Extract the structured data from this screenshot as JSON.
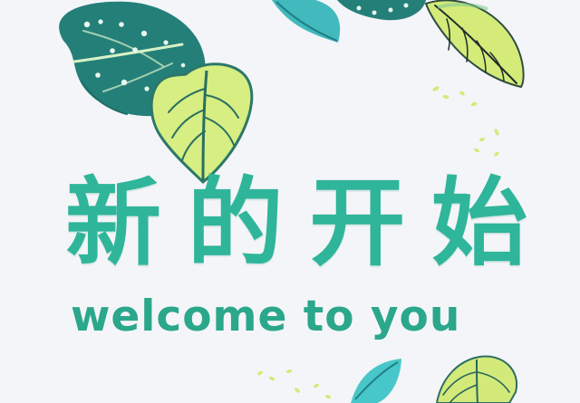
{
  "title": {
    "chars": [
      "新",
      "的",
      "开",
      "始"
    ]
  },
  "subtitle": "welcome to you",
  "colors": {
    "background": "#f4f5f8",
    "title": "#2fb59a",
    "subtitle": "#2ba78b",
    "dark_leaf": "#277f77",
    "light_leaf": "#cde97d",
    "blue_leaf": "#47c6c9"
  },
  "icons": {
    "decoration": [
      "monstera-leaf-icon",
      "yellow-green-leaf-icon",
      "small-leaves-icon"
    ]
  }
}
